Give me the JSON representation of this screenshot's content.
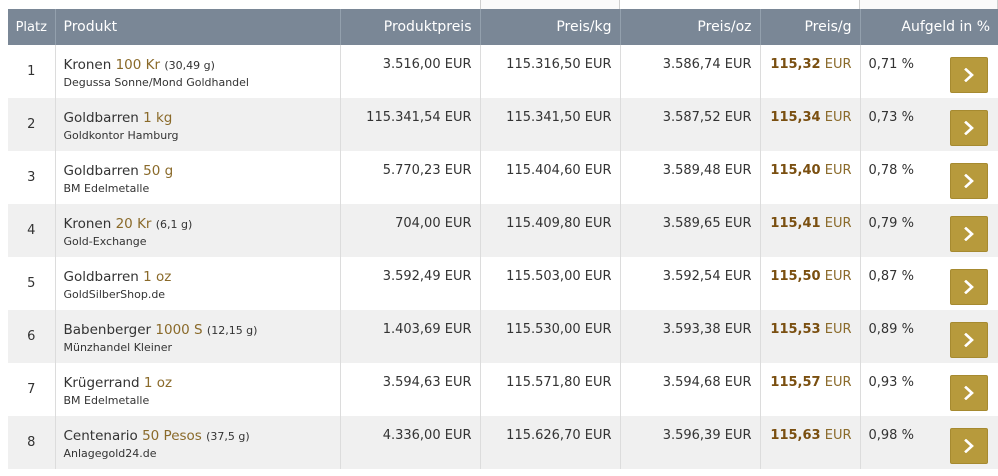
{
  "header": {
    "rank": "Platz",
    "product": "Produkt",
    "price": "Produktpreis",
    "per_kg": "Preis/kg",
    "per_oz": "Preis/oz",
    "per_g": "Preis/g",
    "premium": "Aufgeld in %"
  },
  "colors": {
    "header_bg": "#7a8796",
    "accent_gold": "#b79a3c",
    "amount_text": "#8a6a2a",
    "per_g_text": "#7a4f10"
  },
  "row_button_icon": "chevron-right-icon",
  "rows": [
    {
      "rank": "1",
      "name": "Kronen",
      "amount": "100 Kr",
      "weight": "(30,49 g)",
      "dealer": "Degussa Sonne/Mond Goldhandel",
      "price": "3.516,00 EUR",
      "per_kg": "115.316,50 EUR",
      "per_oz": "3.586,74 EUR",
      "per_g_value": "115,32",
      "per_g_unit": "EUR",
      "premium": "0,71 %"
    },
    {
      "rank": "2",
      "name": "Goldbarren",
      "amount": "1 kg",
      "weight": "",
      "dealer": "Goldkontor Hamburg",
      "price": "115.341,54 EUR",
      "per_kg": "115.341,50 EUR",
      "per_oz": "3.587,52 EUR",
      "per_g_value": "115,34",
      "per_g_unit": "EUR",
      "premium": "0,73 %"
    },
    {
      "rank": "3",
      "name": "Goldbarren",
      "amount": "50 g",
      "weight": "",
      "dealer": "BM Edelmetalle",
      "price": "5.770,23 EUR",
      "per_kg": "115.404,60 EUR",
      "per_oz": "3.589,48 EUR",
      "per_g_value": "115,40",
      "per_g_unit": "EUR",
      "premium": "0,78 %"
    },
    {
      "rank": "4",
      "name": "Kronen",
      "amount": "20 Kr",
      "weight": "(6,1 g)",
      "dealer": "Gold-Exchange",
      "price": "704,00 EUR",
      "per_kg": "115.409,80 EUR",
      "per_oz": "3.589,65 EUR",
      "per_g_value": "115,41",
      "per_g_unit": "EUR",
      "premium": "0,79 %"
    },
    {
      "rank": "5",
      "name": "Goldbarren",
      "amount": "1 oz",
      "weight": "",
      "dealer": "GoldSilberShop.de",
      "price": "3.592,49 EUR",
      "per_kg": "115.503,00 EUR",
      "per_oz": "3.592,54 EUR",
      "per_g_value": "115,50",
      "per_g_unit": "EUR",
      "premium": "0,87 %"
    },
    {
      "rank": "6",
      "name": "Babenberger",
      "amount": "1000 S",
      "weight": "(12,15 g)",
      "dealer": "Münzhandel Kleiner",
      "price": "1.403,69 EUR",
      "per_kg": "115.530,00 EUR",
      "per_oz": "3.593,38 EUR",
      "per_g_value": "115,53",
      "per_g_unit": "EUR",
      "premium": "0,89 %"
    },
    {
      "rank": "7",
      "name": "Krügerrand",
      "amount": "1 oz",
      "weight": "",
      "dealer": "BM Edelmetalle",
      "price": "3.594,63 EUR",
      "per_kg": "115.571,80 EUR",
      "per_oz": "3.594,68 EUR",
      "per_g_value": "115,57",
      "per_g_unit": "EUR",
      "premium": "0,93 %"
    },
    {
      "rank": "8",
      "name": "Centenario",
      "amount": "50 Pesos",
      "weight": "(37,5 g)",
      "dealer": "Anlagegold24.de",
      "price": "4.336,00 EUR",
      "per_kg": "115.626,70 EUR",
      "per_oz": "3.596,39 EUR",
      "per_g_value": "115,63",
      "per_g_unit": "EUR",
      "premium": "0,98 %"
    }
  ]
}
